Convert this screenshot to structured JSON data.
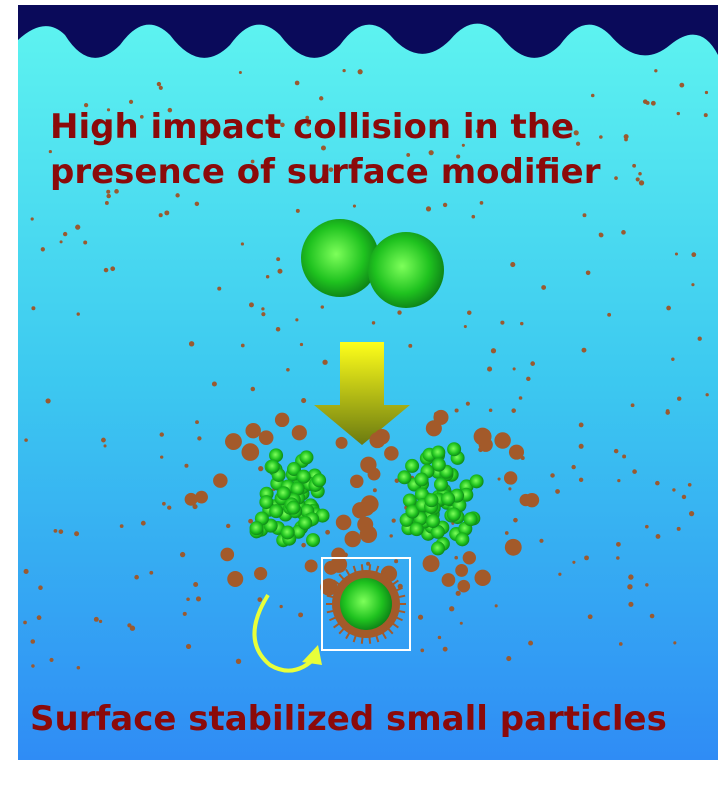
{
  "title": {
    "lines": [
      "High impact collision in the",
      "presence of surface modifier"
    ]
  },
  "caption": "Surface stabilized small particles"
}
